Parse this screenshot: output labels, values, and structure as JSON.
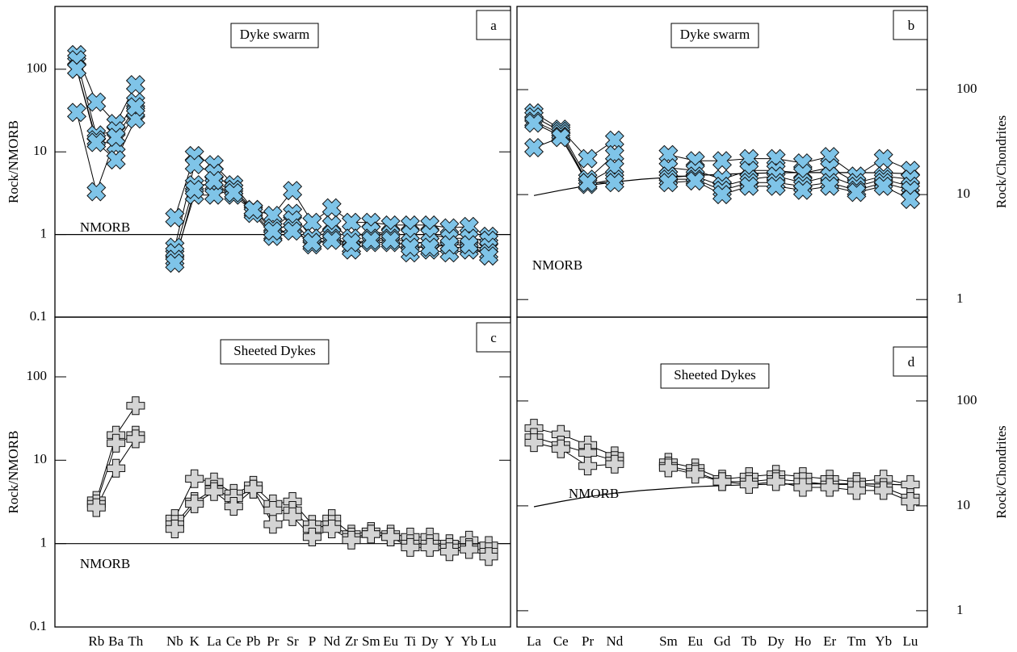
{
  "chart_data": [
    {
      "type": "line",
      "ylabel": "Rock/NMORB",
      "panel_label": "a",
      "annotation": "Dyke swarm",
      "marker": "x",
      "color": "#7fc4e8",
      "log_scale": true,
      "ylim": [
        0.1,
        575
      ],
      "yticks": [
        0.1,
        1,
        10,
        100
      ],
      "yaxis_side": "left",
      "reference": {
        "label": "NMORB",
        "value": 1
      },
      "series": [
        {
          "values": [
            150,
            40,
            22,
            65,
            null,
            1.6,
            9,
            7,
            4,
            2,
            1.7,
            3.4,
            1.4,
            2.1,
            1.4,
            1.4,
            1.3,
            1.3,
            1.3,
            1.2,
            1.25,
            0.95
          ]
        },
        {
          "values": [
            130,
            16,
            18,
            40,
            null,
            0.7,
            7,
            5.5,
            3.5,
            2,
            1.2,
            1.8,
            0.9,
            1.3,
            0.9,
            1.1,
            1,
            1,
            1,
            0.9,
            0.9,
            0.85
          ]
        },
        {
          "values": [
            100,
            14,
            12,
            30,
            null,
            0.6,
            4,
            4,
            3,
            1.9,
            1,
            1.5,
            0.8,
            1,
            0.7,
            0.9,
            0.9,
            0.8,
            0.8,
            0.7,
            0.7,
            0.7
          ]
        },
        {
          "values": [
            100,
            13,
            8,
            25,
            null,
            0.5,
            3,
            3,
            3.5,
            1.8,
            0.95,
            1.2,
            0.75,
            0.9,
            0.65,
            0.8,
            0.8,
            0.6,
            0.65,
            0.6,
            0.65,
            0.6
          ]
        },
        {
          "values": [
            30,
            3.3,
            15,
            35,
            null,
            0.45,
            3.5,
            4.5,
            3.2,
            2,
            1.1,
            1.1,
            0.8,
            0.85,
            0.8,
            0.85,
            0.85,
            0.7,
            0.7,
            0.75,
            0.75,
            0.55
          ]
        }
      ]
    },
    {
      "type": "line",
      "ylabel": "Rock/Chondrites",
      "panel_label": "b",
      "annotation": "Dyke swarm",
      "marker": "x",
      "color": "#7fc4e8",
      "log_scale": true,
      "ylim": [
        0.68,
        620
      ],
      "yticks": [
        1,
        10,
        100
      ],
      "yaxis_side": "right",
      "reference": {
        "label": "NMORB",
        "values": [
          9.8,
          11,
          12.2,
          13.2,
          14,
          14.6,
          15.2,
          15.6,
          15.9,
          16.1,
          16.2,
          16.2,
          16.2,
          16.1,
          15.8
        ]
      },
      "series": [
        {
          "values": [
            60,
            42,
            22,
            33,
            null,
            24,
            21,
            21,
            22,
            22,
            20,
            23,
            15,
            22,
            17
          ]
        },
        {
          "values": [
            55,
            40,
            14,
            24,
            null,
            18,
            17,
            14,
            17,
            17,
            16,
            18,
            13,
            15,
            14
          ]
        },
        {
          "values": [
            50,
            38,
            13,
            18,
            null,
            15,
            15,
            12,
            14,
            15,
            13,
            15,
            12,
            14,
            12
          ]
        },
        {
          "values": [
            48,
            36,
            12.5,
            14,
            null,
            14,
            14,
            11,
            13,
            13,
            12,
            13,
            11,
            13,
            11
          ]
        },
        {
          "values": [
            28,
            35,
            13,
            13,
            null,
            13,
            13.5,
            10,
            12,
            12,
            11,
            12,
            10.5,
            12,
            9
          ]
        }
      ]
    },
    {
      "type": "line",
      "ylabel": "Rock/NMORB",
      "panel_label": "c",
      "annotation": "Sheeted Dykes",
      "marker": "plus",
      "color": "#d4d4d4",
      "log_scale": true,
      "ylim": [
        0.1,
        520
      ],
      "yticks": [
        0.1,
        1,
        10,
        100
      ],
      "yaxis_side": "left",
      "categories": [
        null,
        "Rb",
        "Ba",
        "Th",
        null,
        "Nb",
        "K",
        "La",
        "Ce",
        "Pb",
        "Pr",
        "Sr",
        "P",
        "Nd",
        "Zr",
        "Sm",
        "Eu",
        "Ti",
        "Dy",
        "Y",
        "Yb",
        "Lu"
      ],
      "reference": {
        "label": "NMORB",
        "value": 1
      },
      "series": [
        {
          "values": [
            null,
            3.3,
            20,
            45,
            null,
            2,
            6,
            5.5,
            4,
            5,
            3,
            3.2,
            1.7,
            2,
            1.3,
            1.4,
            1.3,
            1.2,
            1.2,
            1,
            1.1,
            0.95
          ]
        },
        {
          "values": [
            null,
            3,
            16,
            20,
            null,
            1.7,
            3.2,
            4.5,
            3.5,
            4.5,
            2.5,
            2.5,
            1.5,
            1.7,
            1.2,
            1.3,
            1.2,
            1,
            1,
            0.9,
            0.9,
            0.8
          ]
        },
        {
          "values": [
            null,
            2.7,
            8,
            18,
            null,
            1.5,
            3,
            4.2,
            2.8,
            4.5,
            1.7,
            2.1,
            1.2,
            1.5,
            1.1,
            1.3,
            1.2,
            0.9,
            0.9,
            0.8,
            0.85,
            0.7
          ]
        }
      ]
    },
    {
      "type": "line",
      "ylabel": "Rock/Chondrites",
      "panel_label": "d",
      "annotation": "Sheeted Dykes",
      "marker": "plus",
      "color": "#d4d4d4",
      "log_scale": true,
      "ylim": [
        0.7,
        630
      ],
      "yticks": [
        1,
        10,
        100
      ],
      "yaxis_side": "right",
      "categories": [
        "La",
        "Ce",
        "Pr",
        "Nd",
        null,
        "Sm",
        "Eu",
        "Gd",
        "Tb",
        "Dy",
        "Ho",
        "Er",
        "Tm",
        "Yb",
        "Lu"
      ],
      "reference": {
        "label": "NMORB",
        "values": [
          9.8,
          11,
          12.2,
          13.2,
          14,
          14.6,
          15.2,
          15.6,
          15.9,
          16.1,
          16.2,
          16.2,
          16.2,
          16.1,
          15.8
        ]
      },
      "series": [
        {
          "values": [
            55,
            48,
            38,
            30,
            null,
            26,
            23,
            18,
            19,
            20,
            19,
            18,
            17,
            18,
            16
          ]
        },
        {
          "values": [
            45,
            38,
            32,
            27,
            null,
            24,
            21,
            17,
            17,
            18,
            17,
            16,
            16,
            15,
            12
          ]
        },
        {
          "values": [
            40,
            35,
            24,
            25,
            null,
            23,
            20,
            17,
            16,
            17,
            15,
            15,
            14,
            14,
            11
          ]
        }
      ]
    }
  ]
}
